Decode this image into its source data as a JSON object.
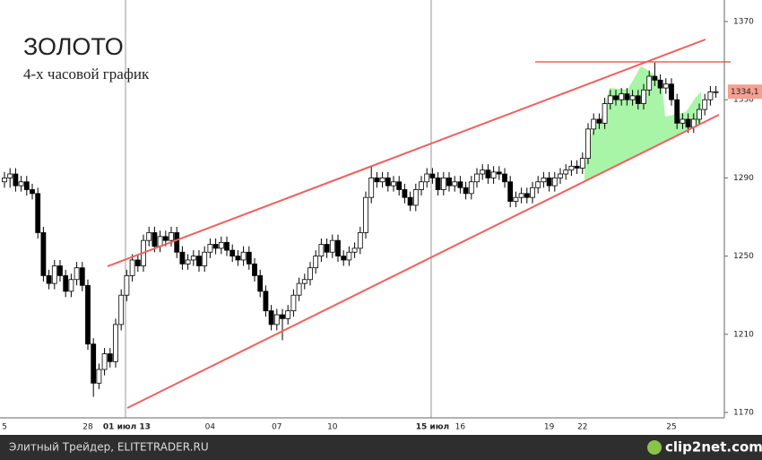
{
  "chart_data": {
    "type": "candlestick",
    "title": "ЗОЛОТО",
    "subtitle": "4-х часовой график",
    "categories": [
      "5",
      null,
      null,
      null,
      null,
      null,
      null,
      null,
      null,
      null,
      null,
      null,
      null,
      null,
      null,
      "28",
      null,
      null,
      null,
      null,
      null,
      null,
      "01 июл 13",
      null,
      null,
      null,
      null,
      null,
      null,
      null,
      null,
      null,
      null,
      null,
      null,
      null,
      null,
      "04",
      null,
      null,
      null,
      null,
      null,
      null,
      null,
      null,
      null,
      null,
      null,
      "07",
      null,
      null,
      null,
      null,
      null,
      null,
      null,
      null,
      null,
      "10",
      null,
      null,
      null,
      null,
      null,
      null,
      null,
      null,
      null,
      null,
      null,
      null,
      null,
      null,
      null,
      null,
      null,
      "15 июл",
      null,
      null,
      null,
      null,
      "16",
      null,
      null,
      null,
      null,
      null,
      null,
      null,
      null,
      null,
      null,
      null,
      null,
      null,
      null,
      null,
      "19",
      null,
      null,
      null,
      null,
      null,
      "22",
      null,
      null,
      null,
      null,
      null,
      null,
      null,
      null,
      null,
      null,
      null,
      null,
      null,
      null,
      null,
      "25",
      null,
      null,
      null,
      null,
      null,
      null,
      null,
      null
    ],
    "open": [
      1288,
      1290,
      1292,
      1286,
      1288,
      1284,
      1282,
      1262,
      1240,
      1236,
      1245,
      1240,
      1232,
      1238,
      1244,
      1235,
      1205,
      1185,
      1192,
      1200,
      1196,
      1215,
      1230,
      1240,
      1248,
      1245,
      1258,
      1262,
      1255,
      1260,
      1258,
      1262,
      1252,
      1246,
      1248,
      1250,
      1245,
      1252,
      1256,
      1254,
      1257,
      1253,
      1250,
      1248,
      1252,
      1246,
      1240,
      1232,
      1222,
      1215,
      1220,
      1218,
      1222,
      1230,
      1236,
      1238,
      1244,
      1250,
      1256,
      1252,
      1258,
      1250,
      1248,
      1252,
      1254,
      1262,
      1280,
      1290,
      1288,
      1290,
      1286,
      1288,
      1284,
      1280,
      1276,
      1284,
      1288,
      1292,
      1290,
      1284,
      1290,
      1286,
      1288,
      1285,
      1282,
      1288,
      1292,
      1294,
      1290,
      1293,
      1292,
      1288,
      1278,
      1280,
      1282,
      1280,
      1285,
      1288,
      1290,
      1286,
      1290,
      1292,
      1294,
      1296,
      1295,
      1300,
      1315,
      1320,
      1318,
      1328,
      1332,
      1330,
      1333,
      1330,
      1332,
      1328,
      1335,
      1342,
      1340,
      1336,
      1338,
      1330,
      1318,
      1320,
      1316,
      1320,
      1325,
      1330,
      1334
    ],
    "high": [
      1293,
      1295,
      1295,
      1291,
      1291,
      1287,
      1285,
      1265,
      1243,
      1248,
      1248,
      1243,
      1241,
      1247,
      1247,
      1238,
      1208,
      1195,
      1203,
      1203,
      1218,
      1233,
      1243,
      1251,
      1251,
      1261,
      1265,
      1265,
      1263,
      1263,
      1265,
      1265,
      1255,
      1251,
      1253,
      1253,
      1255,
      1259,
      1259,
      1260,
      1260,
      1256,
      1253,
      1255,
      1255,
      1249,
      1243,
      1235,
      1225,
      1223,
      1223,
      1225,
      1233,
      1239,
      1241,
      1247,
      1253,
      1259,
      1259,
      1261,
      1261,
      1253,
      1255,
      1257,
      1265,
      1283,
      1296,
      1293,
      1293,
      1293,
      1291,
      1291,
      1287,
      1283,
      1287,
      1291,
      1295,
      1295,
      1293,
      1293,
      1293,
      1291,
      1291,
      1288,
      1291,
      1295,
      1297,
      1297,
      1296,
      1296,
      1295,
      1291,
      1283,
      1285,
      1285,
      1288,
      1291,
      1293,
      1293,
      1293,
      1295,
      1297,
      1299,
      1299,
      1303,
      1318,
      1323,
      1323,
      1331,
      1335,
      1335,
      1336,
      1336,
      1335,
      1335,
      1338,
      1345,
      1349,
      1343,
      1341,
      1341,
      1333,
      1323,
      1323,
      1323,
      1328,
      1333,
      1337,
      1337
    ],
    "low": [
      1285,
      1285,
      1283,
      1283,
      1281,
      1279,
      1259,
      1237,
      1233,
      1233,
      1237,
      1229,
      1229,
      1235,
      1232,
      1202,
      1178,
      1182,
      1189,
      1193,
      1193,
      1212,
      1227,
      1237,
      1242,
      1242,
      1255,
      1252,
      1252,
      1255,
      1255,
      1249,
      1243,
      1243,
      1245,
      1242,
      1242,
      1249,
      1251,
      1251,
      1250,
      1247,
      1245,
      1245,
      1243,
      1237,
      1229,
      1219,
      1212,
      1212,
      1207,
      1215,
      1219,
      1227,
      1233,
      1235,
      1241,
      1247,
      1249,
      1249,
      1247,
      1245,
      1245,
      1249,
      1251,
      1259,
      1277,
      1285,
      1285,
      1283,
      1283,
      1281,
      1277,
      1273,
      1273,
      1281,
      1285,
      1287,
      1281,
      1281,
      1283,
      1283,
      1282,
      1279,
      1279,
      1285,
      1289,
      1287,
      1287,
      1289,
      1285,
      1275,
      1275,
      1277,
      1277,
      1277,
      1282,
      1285,
      1283,
      1283,
      1287,
      1289,
      1291,
      1292,
      1292,
      1297,
      1312,
      1315,
      1315,
      1325,
      1327,
      1327,
      1327,
      1327,
      1325,
      1325,
      1332,
      1337,
      1333,
      1333,
      1327,
      1315,
      1315,
      1313,
      1313,
      1317,
      1322,
      1327,
      1331
    ],
    "close": [
      1290,
      1292,
      1286,
      1288,
      1284,
      1282,
      1262,
      1240,
      1236,
      1245,
      1240,
      1232,
      1238,
      1244,
      1235,
      1205,
      1185,
      1192,
      1200,
      1196,
      1215,
      1230,
      1240,
      1248,
      1245,
      1258,
      1262,
      1255,
      1260,
      1258,
      1262,
      1252,
      1246,
      1248,
      1250,
      1245,
      1252,
      1256,
      1254,
      1257,
      1253,
      1250,
      1248,
      1252,
      1246,
      1240,
      1232,
      1222,
      1215,
      1220,
      1218,
      1222,
      1230,
      1236,
      1238,
      1244,
      1250,
      1256,
      1252,
      1258,
      1250,
      1248,
      1252,
      1254,
      1262,
      1280,
      1290,
      1288,
      1290,
      1286,
      1288,
      1284,
      1280,
      1276,
      1284,
      1288,
      1292,
      1290,
      1284,
      1290,
      1286,
      1288,
      1285,
      1282,
      1288,
      1292,
      1294,
      1290,
      1293,
      1292,
      1288,
      1278,
      1280,
      1282,
      1280,
      1285,
      1288,
      1290,
      1286,
      1290,
      1292,
      1294,
      1296,
      1295,
      1300,
      1315,
      1320,
      1318,
      1328,
      1332,
      1330,
      1333,
      1330,
      1332,
      1328,
      1335,
      1342,
      1340,
      1336,
      1338,
      1330,
      1318,
      1320,
      1316,
      1320,
      1325,
      1330,
      1334,
      1334.1
    ],
    "ylim": [
      1170,
      1370
    ],
    "yticks": [
      1170,
      1210,
      1250,
      1290,
      1330,
      1370
    ],
    "last_price": {
      "value": 1334.1,
      "label": "1334,1"
    }
  },
  "footer": {
    "source": "Элитный Трейдер, ELITETRADER.RU",
    "watermark": "clip2net.com"
  }
}
